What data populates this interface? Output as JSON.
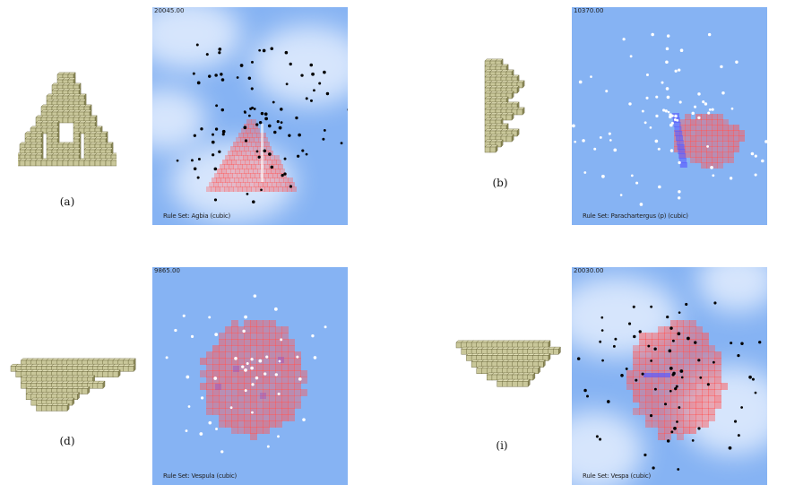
{
  "figures": [
    {
      "id": "a",
      "caption": "(a)",
      "counter": "20045.00",
      "ruleset": "Rule  Set:  Agbia  (cubic)",
      "particle_color": "black",
      "clouds": true
    },
    {
      "id": "b",
      "caption": "(b)",
      "counter": "10370.00",
      "ruleset": "Rule  Set:  Parachartergus  (p)  (cubic)",
      "particle_color": "white",
      "clouds": false
    },
    {
      "id": "d",
      "caption": "(d)",
      "counter": "9865.00",
      "ruleset": "Rule  Set:  Vespula  (cubic)",
      "particle_color": "white",
      "clouds": false
    },
    {
      "id": "i",
      "caption": "(i)",
      "counter": "20030.00",
      "ruleset": "Rule  Set:  Vespa  (cubic)",
      "particle_color": "black",
      "clouds": true
    }
  ],
  "colors": {
    "voxel_fill": "#c9c79a",
    "voxel_edge": "#5e5a2e",
    "sky": "#86b3f3",
    "nest_red": "#ff5a5a",
    "nest_blue": "#5a5aff"
  }
}
